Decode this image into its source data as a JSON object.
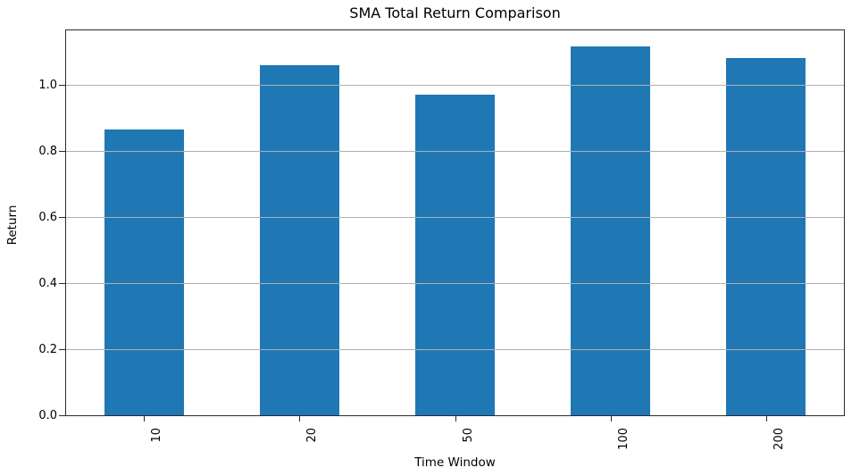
{
  "chart_data": {
    "type": "bar",
    "title": "SMA Total Return Comparison",
    "xlabel": "Time Window",
    "ylabel": "Return",
    "categories": [
      "10",
      "20",
      "50",
      "100",
      "200"
    ],
    "values": [
      0.865,
      1.06,
      0.97,
      1.115,
      1.08
    ],
    "ylim": [
      0,
      1.17
    ],
    "yticks": [
      0.0,
      0.2,
      0.4,
      0.6,
      0.8,
      1.0
    ],
    "ytick_labels": [
      "0.0",
      "0.2",
      "0.4",
      "0.6",
      "0.8",
      "1.0"
    ],
    "x_tick_rotation_degrees": 90,
    "grid": "horizontal",
    "legend": "none",
    "bar_color": "#1f77b4",
    "grid_color": "#b0b0b0",
    "spine_color": "#2b2b2b",
    "bar_width_fraction": 0.51
  }
}
